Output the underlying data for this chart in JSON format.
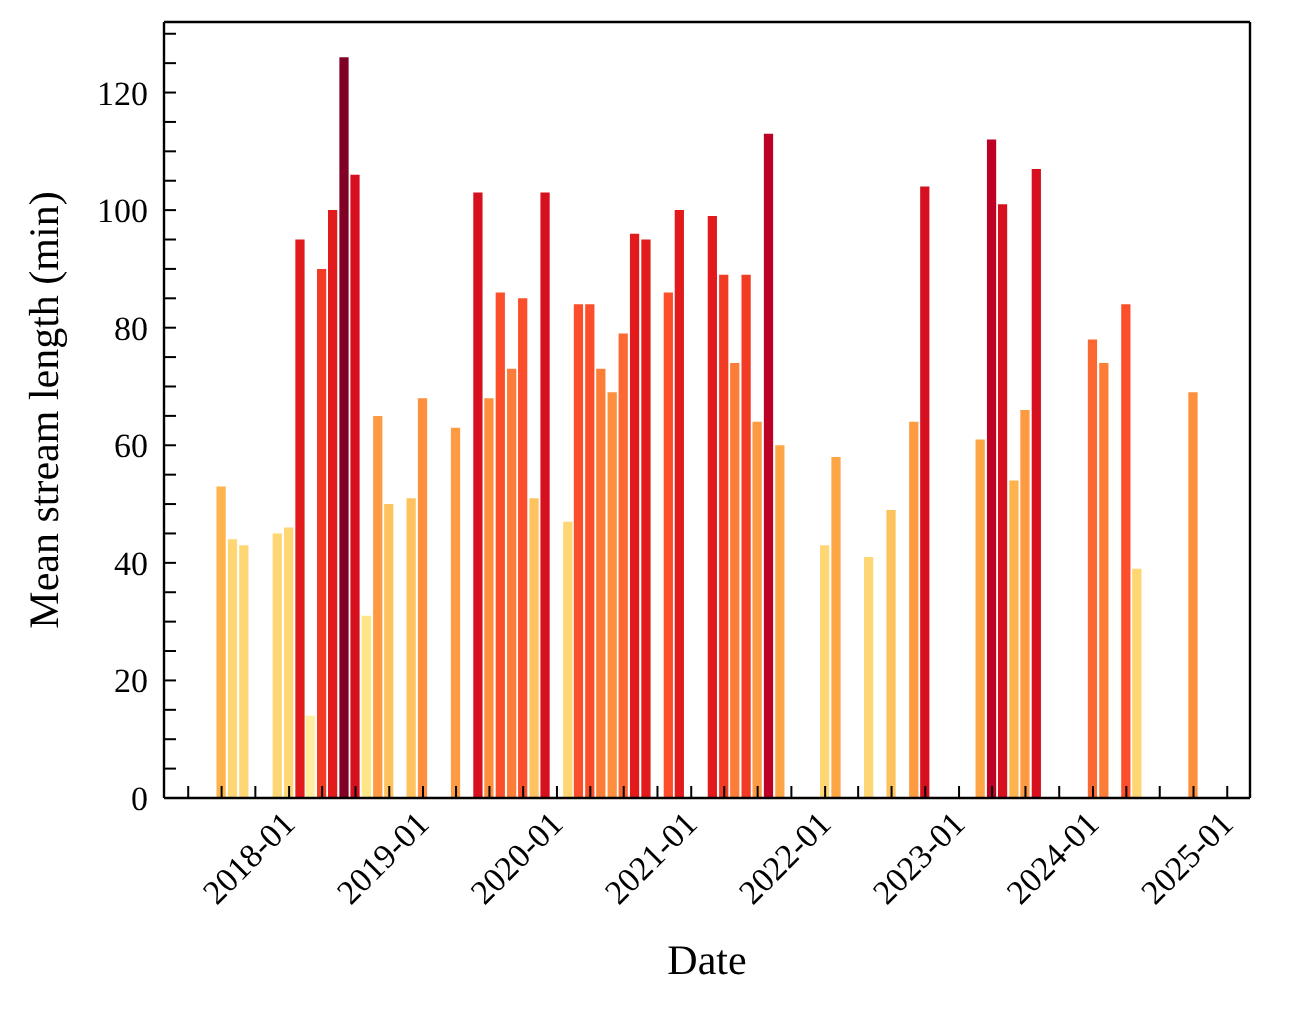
{
  "chart_data": {
    "type": "bar",
    "xlabel": "Date",
    "ylabel": "Mean stream length (min)",
    "x": [
      "2017-07",
      "2017-08",
      "2017-09",
      "2017-12",
      "2018-01",
      "2018-02",
      "2018-03",
      "2018-04",
      "2018-05",
      "2018-06",
      "2018-07",
      "2018-08",
      "2018-09",
      "2018-10",
      "2018-12",
      "2019-01",
      "2019-04",
      "2019-06",
      "2019-07",
      "2019-08",
      "2019-09",
      "2019-10",
      "2019-11",
      "2019-12",
      "2020-02",
      "2020-03",
      "2020-04",
      "2020-05",
      "2020-06",
      "2020-07",
      "2020-08",
      "2020-09",
      "2020-11",
      "2020-12",
      "2021-03",
      "2021-04",
      "2021-05",
      "2021-06",
      "2021-07",
      "2021-08",
      "2021-09",
      "2022-01",
      "2022-02",
      "2022-05",
      "2022-07",
      "2022-09",
      "2022-10",
      "2023-03",
      "2023-04",
      "2023-05",
      "2023-06",
      "2023-07",
      "2023-08",
      "2024-01",
      "2024-02",
      "2024-04",
      "2024-05",
      "2024-10"
    ],
    "values": [
      53,
      44,
      43,
      45,
      46,
      95,
      14,
      90,
      100,
      126,
      106,
      31,
      65,
      50,
      51,
      68,
      63,
      103,
      68,
      86,
      73,
      85,
      51,
      103,
      47,
      84,
      84,
      73,
      69,
      79,
      96,
      95,
      86,
      100,
      99,
      89,
      74,
      89,
      64,
      113,
      60,
      43,
      58,
      41,
      49,
      64,
      104,
      61,
      112,
      101,
      54,
      66,
      107,
      78,
      74,
      84,
      39,
      69
    ],
    "colors": [
      "#feb34d",
      "#fed673",
      "#fed673",
      "#fed673",
      "#fed673",
      "#e31a1c",
      "#ffeea0",
      "#f23b25",
      "#e31a1c",
      "#800026",
      "#d6101f",
      "#fee687",
      "#fd9a42",
      "#fec35f",
      "#fec35f",
      "#fd8f3d",
      "#fd9a42",
      "#d6101f",
      "#fd8f3d",
      "#fc4e2a",
      "#fc7d37",
      "#fc4e2a",
      "#fec35f",
      "#d6101f",
      "#fed673",
      "#fc4e2a",
      "#fc4e2a",
      "#fc7d37",
      "#fd8f3d",
      "#fc6832",
      "#e31a1c",
      "#e31a1c",
      "#fc4e2a",
      "#e31a1c",
      "#e31a1c",
      "#f23b25",
      "#fc7d37",
      "#f23b25",
      "#fd9a42",
      "#bd0026",
      "#fea546",
      "#fed673",
      "#fea546",
      "#fed673",
      "#fec35f",
      "#fd9a42",
      "#d6101f",
      "#fea546",
      "#bd0026",
      "#d6101f",
      "#feb34d",
      "#fd9a42",
      "#d6101f",
      "#fc6832",
      "#fc7d37",
      "#fc4e2a",
      "#fed673",
      "#fd8f3d"
    ],
    "xlim": [
      "2017-01-25",
      "2025-03-04"
    ],
    "xticks": [
      {
        "value": "2017-04",
        "label": null
      },
      {
        "value": "2017-07",
        "label": null
      },
      {
        "value": "2017-10",
        "label": null
      },
      "2018-01",
      {
        "value": "2018-04",
        "label": null
      },
      {
        "value": "2018-07",
        "label": null
      },
      {
        "value": "2018-10",
        "label": null
      },
      "2019-01",
      {
        "value": "2019-04",
        "label": null
      },
      {
        "value": "2019-07",
        "label": null
      },
      {
        "value": "2019-10",
        "label": null
      },
      "2020-01",
      {
        "value": "2020-04",
        "label": null
      },
      {
        "value": "2020-07",
        "label": null
      },
      {
        "value": "2020-10",
        "label": null
      },
      "2021-01",
      {
        "value": "2021-04",
        "label": null
      },
      {
        "value": "2021-07",
        "label": null
      },
      {
        "value": "2021-10",
        "label": null
      },
      "2022-01",
      {
        "value": "2022-04",
        "label": null
      },
      {
        "value": "2022-07",
        "label": null
      },
      {
        "value": "2022-10",
        "label": null
      },
      "2023-01",
      {
        "value": "2023-04",
        "label": null
      },
      {
        "value": "2023-07",
        "label": null
      },
      {
        "value": "2023-10",
        "label": null
      },
      "2024-01",
      {
        "value": "2024-04",
        "label": null
      },
      {
        "value": "2024-07",
        "label": null
      },
      {
        "value": "2024-10",
        "label": null
      },
      "2025-01"
    ],
    "ylim": [
      0,
      132
    ],
    "yticks": [
      0,
      {
        "value": 5,
        "label": null
      },
      {
        "value": 10,
        "label": null
      },
      {
        "value": 15,
        "label": null
      },
      20,
      {
        "value": 25,
        "label": null
      },
      {
        "value": 30,
        "label": null
      },
      {
        "value": 35,
        "label": null
      },
      40,
      {
        "value": 45,
        "label": null
      },
      {
        "value": 50,
        "label": null
      },
      {
        "value": 55,
        "label": null
      },
      60,
      {
        "value": 65,
        "label": null
      },
      {
        "value": 70,
        "label": null
      },
      {
        "value": 75,
        "label": null
      },
      80,
      {
        "value": 85,
        "label": null
      },
      {
        "value": 90,
        "label": null
      },
      {
        "value": 95,
        "label": null
      },
      100,
      {
        "value": 105,
        "label": null
      },
      {
        "value": 110,
        "label": null
      },
      {
        "value": 115,
        "label": null
      },
      120,
      {
        "value": 125,
        "label": null
      },
      {
        "value": 130,
        "label": null
      }
    ]
  }
}
